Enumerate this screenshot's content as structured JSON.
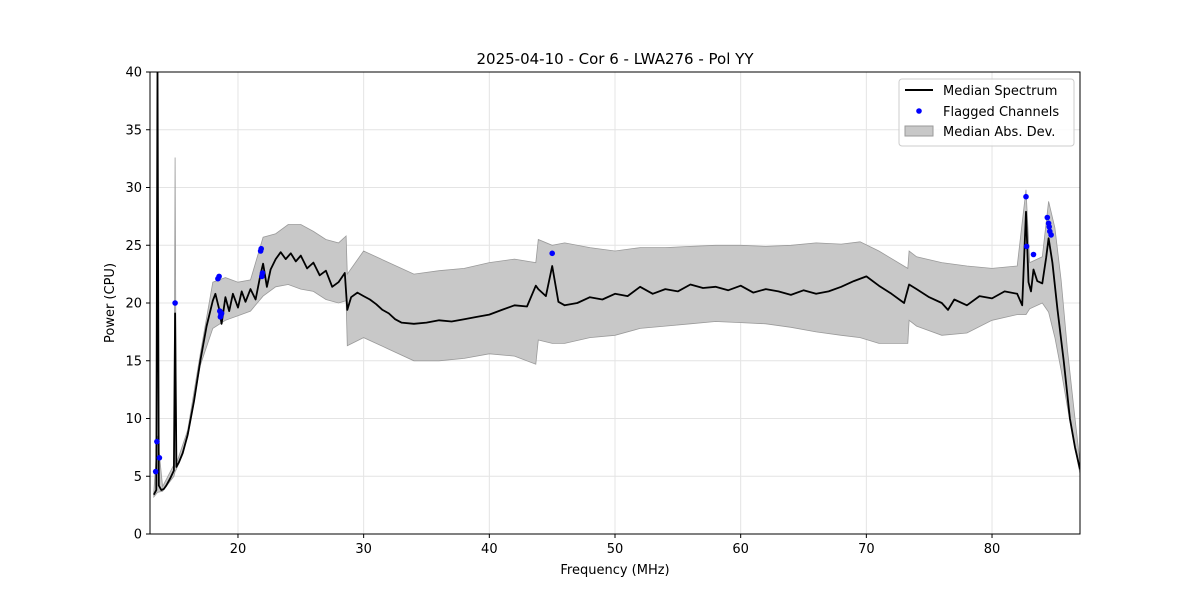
{
  "chart_data": {
    "type": "line",
    "title": "2025-04-10 - Cor 6 - LWA276 - Pol YY",
    "xlabel": "Frequency (MHz)",
    "ylabel": "Power (CPU)",
    "xlim": [
      13,
      87
    ],
    "ylim": [
      0,
      40
    ],
    "xticks": [
      20,
      30,
      40,
      50,
      60,
      70,
      80
    ],
    "yticks": [
      0,
      5,
      10,
      15,
      20,
      25,
      30,
      35,
      40
    ],
    "grid": true,
    "legend_position": "top-right",
    "colors": {
      "median_line": "#000000",
      "flag_points": "#0000ff",
      "band_fill": "#c8c8c8",
      "band_edge": "#9a9a9a",
      "grid": "#e4e4e4"
    },
    "series": [
      {
        "name": "Median Spectrum",
        "kind": "line",
        "x": [
          13.3,
          13.5,
          13.6,
          13.7,
          13.9,
          14.1,
          14.3,
          14.6,
          14.9,
          15.0,
          15.1,
          15.3,
          15.6,
          16.0,
          16.5,
          17.0,
          17.5,
          18.0,
          18.2,
          18.5,
          18.7,
          19.0,
          19.3,
          19.6,
          20.0,
          20.3,
          20.6,
          21.0,
          21.4,
          21.8,
          22.0,
          22.3,
          22.6,
          23.0,
          23.4,
          23.8,
          24.2,
          24.6,
          25.0,
          25.5,
          26.0,
          26.5,
          27.0,
          27.5,
          28.0,
          28.5,
          28.7,
          29.0,
          29.5,
          30.0,
          30.5,
          31.0,
          31.5,
          32.0,
          32.5,
          33.0,
          34.0,
          35.0,
          36.0,
          37.0,
          38.0,
          39.0,
          40.0,
          41.0,
          42.0,
          43.0,
          43.7,
          43.9,
          44.5,
          45.0,
          45.5,
          46.0,
          47.0,
          48.0,
          49.0,
          50.0,
          51.0,
          52.0,
          53.0,
          54.0,
          55.0,
          56.0,
          57.0,
          58.0,
          59.0,
          60.0,
          61.0,
          62.0,
          63.0,
          64.0,
          65.0,
          66.0,
          67.0,
          68.0,
          69.0,
          70.0,
          71.0,
          72.0,
          73.0,
          73.4,
          74.0,
          75.0,
          76.0,
          76.5,
          77.0,
          78.0,
          79.0,
          80.0,
          81.0,
          82.0,
          82.4,
          82.7,
          82.9,
          83.1,
          83.3,
          83.6,
          84.0,
          84.3,
          84.5,
          84.8,
          85.2,
          85.7,
          86.2,
          86.6,
          87.0
        ],
        "y": [
          3.4,
          3.8,
          40.5,
          4.2,
          3.8,
          3.9,
          4.2,
          4.8,
          5.5,
          19.1,
          5.8,
          6.2,
          7.0,
          8.6,
          11.5,
          15.0,
          18.0,
          20.2,
          20.8,
          19.5,
          18.2,
          20.5,
          19.3,
          20.8,
          19.6,
          21.0,
          20.1,
          21.2,
          20.3,
          22.5,
          23.4,
          21.4,
          22.9,
          23.8,
          24.4,
          23.8,
          24.3,
          23.6,
          24.1,
          23.0,
          23.5,
          22.4,
          22.8,
          21.4,
          21.8,
          22.6,
          19.4,
          20.5,
          20.9,
          20.6,
          20.3,
          19.9,
          19.4,
          19.1,
          18.6,
          18.3,
          18.2,
          18.3,
          18.5,
          18.4,
          18.6,
          18.8,
          19.0,
          19.4,
          19.8,
          19.7,
          21.5,
          21.2,
          20.6,
          23.2,
          20.1,
          19.8,
          20.0,
          20.5,
          20.3,
          20.8,
          20.6,
          21.4,
          20.8,
          21.2,
          21.0,
          21.6,
          21.3,
          21.4,
          21.1,
          21.5,
          20.9,
          21.2,
          21.0,
          20.7,
          21.1,
          20.8,
          21.0,
          21.4,
          21.9,
          22.3,
          21.5,
          20.8,
          20.0,
          21.6,
          21.2,
          20.5,
          20.0,
          19.4,
          20.3,
          19.8,
          20.6,
          20.4,
          21.0,
          20.8,
          19.8,
          27.9,
          21.8,
          21.0,
          22.9,
          21.9,
          21.7,
          23.9,
          25.6,
          23.5,
          19.5,
          15.0,
          10.0,
          7.5,
          5.6
        ]
      },
      {
        "name": "Median Abs. Dev.",
        "kind": "band",
        "x": [
          13.3,
          13.6,
          14.0,
          14.9,
          15.0,
          15.1,
          16.0,
          17.0,
          18.0,
          19.0,
          20.0,
          21.0,
          22.0,
          23.0,
          24.0,
          25.0,
          26.0,
          27.0,
          28.0,
          28.6,
          28.7,
          30.0,
          32.0,
          34.0,
          36.0,
          38.0,
          40.0,
          42.0,
          43.7,
          43.9,
          45.0,
          46.0,
          48.0,
          50.0,
          52.0,
          54.0,
          56.0,
          58.0,
          60.0,
          62.0,
          64.0,
          66.0,
          68.0,
          69.5,
          71.0,
          73.3,
          73.4,
          74.0,
          76.0,
          78.0,
          80.0,
          82.0,
          82.7,
          83.0,
          84.0,
          84.5,
          85.0,
          85.5,
          86.0,
          86.5,
          87.0
        ],
        "lower": [
          3.2,
          3.6,
          3.7,
          5.0,
          5.4,
          5.6,
          8.4,
          14.6,
          17.8,
          18.5,
          18.9,
          19.3,
          20.6,
          21.4,
          21.6,
          21.2,
          21.0,
          20.3,
          20.0,
          20.2,
          16.3,
          17.0,
          16.0,
          15.0,
          15.0,
          15.2,
          15.6,
          15.4,
          14.7,
          16.8,
          16.5,
          16.5,
          17.0,
          17.2,
          17.8,
          18.0,
          18.2,
          18.4,
          18.3,
          18.2,
          17.9,
          17.5,
          17.2,
          17.0,
          16.5,
          16.5,
          18.5,
          18.0,
          17.2,
          17.4,
          18.5,
          19.0,
          19.0,
          19.5,
          20.0,
          19.2,
          17.0,
          14.2,
          11.0,
          8.0,
          5.2
        ],
        "upper": [
          3.6,
          8.5,
          4.1,
          6.0,
          32.6,
          6.1,
          9.0,
          15.6,
          21.8,
          22.2,
          21.8,
          22.0,
          25.7,
          26.0,
          26.8,
          26.8,
          26.2,
          25.5,
          25.2,
          25.8,
          22.5,
          24.5,
          23.5,
          22.5,
          22.8,
          23.0,
          23.5,
          23.8,
          23.5,
          25.5,
          25.0,
          25.2,
          24.8,
          24.5,
          24.8,
          24.8,
          24.9,
          25.0,
          25.0,
          24.9,
          25.0,
          25.2,
          25.1,
          25.3,
          24.5,
          23.0,
          24.5,
          24.0,
          23.5,
          23.2,
          23.0,
          23.2,
          29.8,
          23.5,
          24.0,
          28.8,
          26.5,
          22.0,
          16.0,
          11.0,
          6.2
        ]
      },
      {
        "name": "Flagged Channels",
        "kind": "scatter",
        "x": [
          13.45,
          13.55,
          13.75,
          15.0,
          18.4,
          18.5,
          18.55,
          18.6,
          18.65,
          18.7,
          21.8,
          21.85,
          21.9,
          21.95,
          45.0,
          82.7,
          82.75,
          83.3,
          84.4,
          84.5,
          84.55,
          84.6,
          84.7
        ],
        "y": [
          5.4,
          8.0,
          6.6,
          20.0,
          22.1,
          22.3,
          19.3,
          18.8,
          19.0,
          19.1,
          24.5,
          24.7,
          22.3,
          22.6,
          24.3,
          29.2,
          24.9,
          24.2,
          27.4,
          26.9,
          26.6,
          26.2,
          25.9
        ]
      }
    ]
  }
}
